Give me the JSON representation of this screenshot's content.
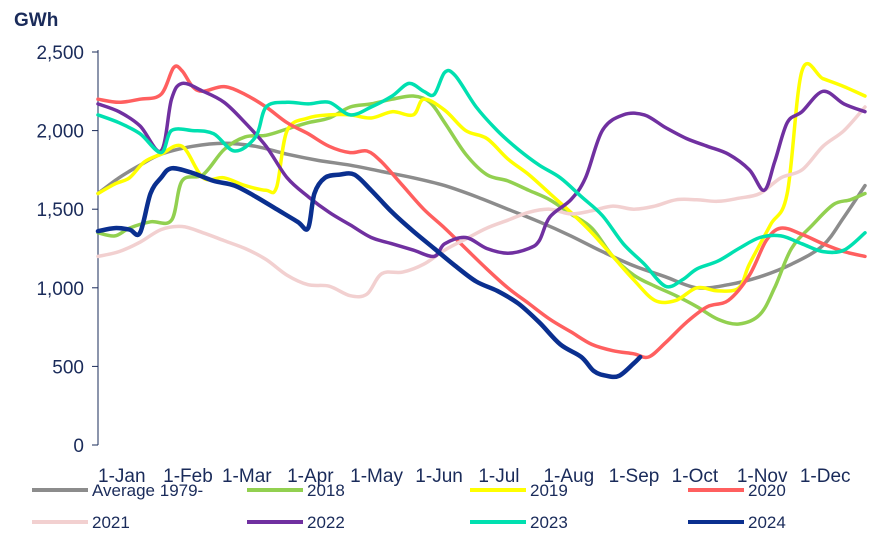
{
  "chart_data": {
    "type": "line",
    "unit_label": "GWh",
    "ylim": [
      0,
      2500
    ],
    "y_ticks": [
      0,
      500,
      1000,
      1500,
      2000,
      2500
    ],
    "y_tick_labels": [
      "0",
      "500",
      "1,000",
      "1,500",
      "2,000",
      "2,500"
    ],
    "x_range_days": [
      0,
      365
    ],
    "x_ticks": [
      0,
      31,
      59,
      90,
      120,
      151,
      181,
      212,
      243,
      273,
      304,
      334
    ],
    "x_tick_labels": [
      "1-Jan",
      "1-Feb",
      "1-Mar",
      "1-Apr",
      "1-May",
      "1-Jun",
      "1-Jul",
      "1-Aug",
      "1-Sep",
      "1-Oct",
      "1-Nov",
      "1-Dec"
    ],
    "grid": false,
    "legend_position": "bottom",
    "series": [
      {
        "name": "Average 1979-",
        "color": "#8c8c8c",
        "points": [
          [
            0,
            1600
          ],
          [
            10,
            1700
          ],
          [
            20,
            1780
          ],
          [
            30,
            1850
          ],
          [
            45,
            1900
          ],
          [
            60,
            1920
          ],
          [
            75,
            1900
          ],
          [
            90,
            1850
          ],
          [
            105,
            1810
          ],
          [
            120,
            1780
          ],
          [
            135,
            1740
          ],
          [
            150,
            1700
          ],
          [
            165,
            1650
          ],
          [
            180,
            1580
          ],
          [
            195,
            1500
          ],
          [
            210,
            1420
          ],
          [
            225,
            1330
          ],
          [
            240,
            1230
          ],
          [
            255,
            1140
          ],
          [
            270,
            1070
          ],
          [
            285,
            1000
          ],
          [
            300,
            1020
          ],
          [
            315,
            1070
          ],
          [
            330,
            1150
          ],
          [
            345,
            1270
          ],
          [
            355,
            1450
          ],
          [
            365,
            1650
          ]
        ]
      },
      {
        "name": "2018",
        "color": "#92d050",
        "points": [
          [
            0,
            1350
          ],
          [
            8,
            1330
          ],
          [
            15,
            1380
          ],
          [
            25,
            1420
          ],
          [
            35,
            1430
          ],
          [
            40,
            1680
          ],
          [
            50,
            1720
          ],
          [
            60,
            1880
          ],
          [
            70,
            1960
          ],
          [
            80,
            1970
          ],
          [
            90,
            2010
          ],
          [
            100,
            2050
          ],
          [
            110,
            2080
          ],
          [
            120,
            2150
          ],
          [
            130,
            2170
          ],
          [
            140,
            2200
          ],
          [
            150,
            2220
          ],
          [
            158,
            2180
          ],
          [
            165,
            2050
          ],
          [
            175,
            1850
          ],
          [
            185,
            1720
          ],
          [
            195,
            1680
          ],
          [
            205,
            1620
          ],
          [
            215,
            1560
          ],
          [
            225,
            1470
          ],
          [
            235,
            1380
          ],
          [
            245,
            1200
          ],
          [
            255,
            1080
          ],
          [
            265,
            1010
          ],
          [
            275,
            950
          ],
          [
            285,
            880
          ],
          [
            295,
            800
          ],
          [
            305,
            770
          ],
          [
            315,
            830
          ],
          [
            322,
            1000
          ],
          [
            330,
            1250
          ],
          [
            340,
            1400
          ],
          [
            350,
            1530
          ],
          [
            358,
            1560
          ],
          [
            365,
            1600
          ]
        ]
      },
      {
        "name": "2019",
        "color": "#ffff00",
        "points": [
          [
            0,
            1600
          ],
          [
            8,
            1660
          ],
          [
            15,
            1700
          ],
          [
            22,
            1800
          ],
          [
            30,
            1850
          ],
          [
            40,
            1900
          ],
          [
            50,
            1700
          ],
          [
            60,
            1700
          ],
          [
            70,
            1650
          ],
          [
            80,
            1620
          ],
          [
            85,
            1640
          ],
          [
            90,
            2000
          ],
          [
            100,
            2080
          ],
          [
            110,
            2100
          ],
          [
            120,
            2100
          ],
          [
            130,
            2080
          ],
          [
            140,
            2120
          ],
          [
            150,
            2100
          ],
          [
            155,
            2200
          ],
          [
            165,
            2130
          ],
          [
            175,
            2000
          ],
          [
            185,
            1950
          ],
          [
            195,
            1820
          ],
          [
            205,
            1720
          ],
          [
            215,
            1600
          ],
          [
            225,
            1480
          ],
          [
            235,
            1350
          ],
          [
            245,
            1200
          ],
          [
            255,
            1050
          ],
          [
            265,
            920
          ],
          [
            275,
            920
          ],
          [
            285,
            1000
          ],
          [
            295,
            980
          ],
          [
            305,
            1000
          ],
          [
            310,
            1150
          ],
          [
            320,
            1400
          ],
          [
            328,
            1600
          ],
          [
            335,
            2380
          ],
          [
            345,
            2330
          ],
          [
            355,
            2280
          ],
          [
            365,
            2220
          ]
        ]
      },
      {
        "name": "2020",
        "color": "#ff5f5f",
        "points": [
          [
            0,
            2200
          ],
          [
            10,
            2180
          ],
          [
            20,
            2200
          ],
          [
            30,
            2230
          ],
          [
            36,
            2400
          ],
          [
            40,
            2380
          ],
          [
            45,
            2280
          ],
          [
            50,
            2250
          ],
          [
            60,
            2280
          ],
          [
            70,
            2230
          ],
          [
            80,
            2150
          ],
          [
            90,
            2050
          ],
          [
            100,
            1980
          ],
          [
            110,
            1900
          ],
          [
            120,
            1860
          ],
          [
            128,
            1870
          ],
          [
            135,
            1800
          ],
          [
            145,
            1650
          ],
          [
            155,
            1500
          ],
          [
            165,
            1380
          ],
          [
            175,
            1250
          ],
          [
            185,
            1120
          ],
          [
            195,
            1000
          ],
          [
            205,
            900
          ],
          [
            215,
            800
          ],
          [
            225,
            720
          ],
          [
            235,
            640
          ],
          [
            245,
            600
          ],
          [
            255,
            580
          ],
          [
            262,
            560
          ],
          [
            270,
            650
          ],
          [
            280,
            780
          ],
          [
            290,
            880
          ],
          [
            300,
            920
          ],
          [
            310,
            1080
          ],
          [
            318,
            1300
          ],
          [
            325,
            1380
          ],
          [
            335,
            1340
          ],
          [
            345,
            1280
          ],
          [
            355,
            1230
          ],
          [
            365,
            1200
          ]
        ]
      },
      {
        "name": "2021",
        "color": "#f2d0d0",
        "points": [
          [
            0,
            1200
          ],
          [
            10,
            1230
          ],
          [
            20,
            1290
          ],
          [
            30,
            1370
          ],
          [
            40,
            1390
          ],
          [
            50,
            1350
          ],
          [
            60,
            1300
          ],
          [
            70,
            1250
          ],
          [
            80,
            1180
          ],
          [
            90,
            1080
          ],
          [
            100,
            1020
          ],
          [
            110,
            1010
          ],
          [
            120,
            950
          ],
          [
            128,
            960
          ],
          [
            135,
            1090
          ],
          [
            145,
            1100
          ],
          [
            155,
            1150
          ],
          [
            165,
            1240
          ],
          [
            175,
            1310
          ],
          [
            185,
            1380
          ],
          [
            195,
            1430
          ],
          [
            205,
            1480
          ],
          [
            215,
            1500
          ],
          [
            225,
            1470
          ],
          [
            235,
            1490
          ],
          [
            245,
            1520
          ],
          [
            255,
            1500
          ],
          [
            265,
            1520
          ],
          [
            275,
            1560
          ],
          [
            285,
            1560
          ],
          [
            295,
            1550
          ],
          [
            305,
            1570
          ],
          [
            315,
            1600
          ],
          [
            325,
            1700
          ],
          [
            335,
            1750
          ],
          [
            345,
            1900
          ],
          [
            355,
            2000
          ],
          [
            365,
            2150
          ]
        ]
      },
      {
        "name": "2022",
        "color": "#7030a0",
        "points": [
          [
            0,
            2170
          ],
          [
            10,
            2120
          ],
          [
            20,
            2030
          ],
          [
            30,
            1870
          ],
          [
            35,
            2200
          ],
          [
            40,
            2300
          ],
          [
            50,
            2250
          ],
          [
            60,
            2180
          ],
          [
            70,
            2050
          ],
          [
            80,
            1900
          ],
          [
            90,
            1700
          ],
          [
            100,
            1580
          ],
          [
            110,
            1480
          ],
          [
            120,
            1400
          ],
          [
            130,
            1320
          ],
          [
            140,
            1280
          ],
          [
            150,
            1240
          ],
          [
            160,
            1200
          ],
          [
            165,
            1280
          ],
          [
            175,
            1320
          ],
          [
            185,
            1250
          ],
          [
            195,
            1220
          ],
          [
            205,
            1250
          ],
          [
            210,
            1300
          ],
          [
            215,
            1450
          ],
          [
            225,
            1560
          ],
          [
            232,
            1700
          ],
          [
            240,
            2000
          ],
          [
            250,
            2100
          ],
          [
            260,
            2100
          ],
          [
            270,
            2020
          ],
          [
            280,
            1950
          ],
          [
            290,
            1900
          ],
          [
            300,
            1850
          ],
          [
            310,
            1750
          ],
          [
            317,
            1620
          ],
          [
            322,
            1800
          ],
          [
            328,
            2050
          ],
          [
            335,
            2120
          ],
          [
            345,
            2250
          ],
          [
            355,
            2170
          ],
          [
            365,
            2120
          ]
        ]
      },
      {
        "name": "2023",
        "color": "#00e0b0",
        "points": [
          [
            0,
            2100
          ],
          [
            10,
            2050
          ],
          [
            20,
            1980
          ],
          [
            30,
            1860
          ],
          [
            35,
            2000
          ],
          [
            45,
            2000
          ],
          [
            55,
            1980
          ],
          [
            65,
            1870
          ],
          [
            75,
            1960
          ],
          [
            80,
            2150
          ],
          [
            90,
            2180
          ],
          [
            100,
            2170
          ],
          [
            110,
            2180
          ],
          [
            120,
            2100
          ],
          [
            130,
            2150
          ],
          [
            140,
            2220
          ],
          [
            148,
            2300
          ],
          [
            155,
            2250
          ],
          [
            160,
            2230
          ],
          [
            165,
            2370
          ],
          [
            170,
            2350
          ],
          [
            180,
            2150
          ],
          [
            190,
            2000
          ],
          [
            200,
            1880
          ],
          [
            210,
            1780
          ],
          [
            220,
            1700
          ],
          [
            230,
            1580
          ],
          [
            240,
            1460
          ],
          [
            250,
            1280
          ],
          [
            260,
            1150
          ],
          [
            270,
            1010
          ],
          [
            278,
            1050
          ],
          [
            285,
            1120
          ],
          [
            295,
            1170
          ],
          [
            305,
            1250
          ],
          [
            315,
            1320
          ],
          [
            325,
            1330
          ],
          [
            335,
            1280
          ],
          [
            345,
            1230
          ],
          [
            355,
            1240
          ],
          [
            365,
            1350
          ]
        ]
      },
      {
        "name": "2024",
        "color": "#0a2f8f",
        "points": [
          [
            0,
            1360
          ],
          [
            8,
            1380
          ],
          [
            15,
            1370
          ],
          [
            20,
            1350
          ],
          [
            25,
            1600
          ],
          [
            30,
            1700
          ],
          [
            35,
            1760
          ],
          [
            45,
            1730
          ],
          [
            55,
            1680
          ],
          [
            65,
            1650
          ],
          [
            75,
            1580
          ],
          [
            85,
            1500
          ],
          [
            95,
            1420
          ],
          [
            100,
            1380
          ],
          [
            103,
            1600
          ],
          [
            108,
            1700
          ],
          [
            115,
            1720
          ],
          [
            122,
            1720
          ],
          [
            130,
            1620
          ],
          [
            140,
            1480
          ],
          [
            150,
            1360
          ],
          [
            160,
            1250
          ],
          [
            170,
            1140
          ],
          [
            180,
            1040
          ],
          [
            190,
            980
          ],
          [
            200,
            900
          ],
          [
            210,
            780
          ],
          [
            220,
            640
          ],
          [
            230,
            560
          ],
          [
            236,
            470
          ],
          [
            242,
            440
          ],
          [
            248,
            440
          ],
          [
            255,
            520
          ],
          [
            258,
            560
          ]
        ]
      }
    ]
  }
}
